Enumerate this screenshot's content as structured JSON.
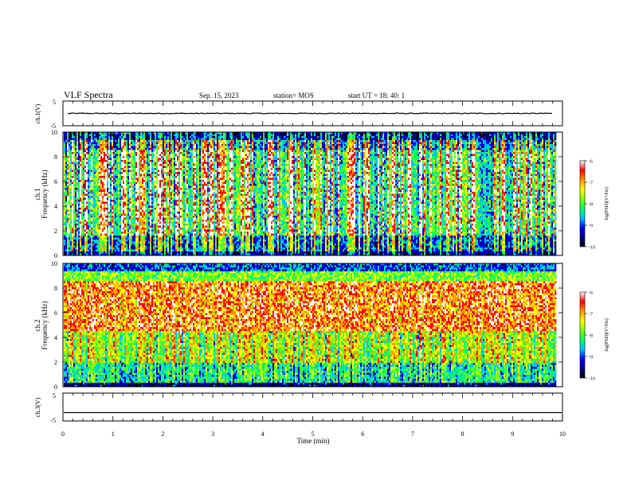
{
  "header": {
    "title": "VLF Spectra",
    "date": "Sep. 15, 2023",
    "station": "station= MOS",
    "start": "start  UT =   18: 40: 1"
  },
  "colors": {
    "palette": [
      "#000000",
      "#00008b",
      "#0000ff",
      "#00bfff",
      "#00ff66",
      "#7fff00",
      "#ffff00",
      "#ff9900",
      "#ff0000",
      "#ffffff"
    ]
  },
  "chart_data": [
    {
      "id": "ch1-voltage",
      "type": "line",
      "ylabel": "ch.1(V)",
      "ylim": [
        -5,
        5
      ],
      "yticks": [
        "5",
        "-5"
      ],
      "xlim": [
        0,
        10
      ],
      "description_value": "flat trace near constant level",
      "level": 0
    },
    {
      "id": "ch1-spectrogram",
      "type": "heatmap",
      "ylabel_line1": "ch.1",
      "ylabel_line2": "Frequency (kHz)",
      "ylim": [
        0,
        10
      ],
      "yticks": [
        "0",
        "2",
        "4",
        "6",
        "8",
        "10"
      ],
      "xlim": [
        0,
        9.85
      ],
      "colorbar": {
        "label": "log(PSD)(V²/Hz)",
        "range": [
          -10,
          -6
        ],
        "ticks": [
          "-6",
          "-7",
          "-8",
          "-9",
          "-10"
        ]
      }
    },
    {
      "id": "ch2-spectrogram",
      "type": "heatmap",
      "ylabel_line1": "ch.2",
      "ylabel_line2": "Frequency (kHz)",
      "ylim": [
        0,
        10
      ],
      "yticks": [
        "0",
        "2",
        "4",
        "6",
        "8",
        "10"
      ],
      "xlim": [
        0,
        9.85
      ],
      "colorbar": {
        "label": "log(PSD)(V²/Hz)",
        "range": [
          -10,
          -6
        ],
        "ticks": [
          "-6",
          "-7",
          "-8",
          "-9",
          "-10"
        ]
      }
    },
    {
      "id": "ch3-voltage",
      "type": "line",
      "ylabel": "ch.3(V)",
      "ylim": [
        -5,
        5
      ],
      "yticks": [
        "5",
        "-5"
      ],
      "xlim": [
        0,
        10
      ],
      "level": -2,
      "xlabel": "Time  (min)",
      "xticks": [
        "0",
        "1",
        "2",
        "3",
        "4",
        "5",
        "6",
        "7",
        "8",
        "9",
        "10"
      ]
    }
  ]
}
